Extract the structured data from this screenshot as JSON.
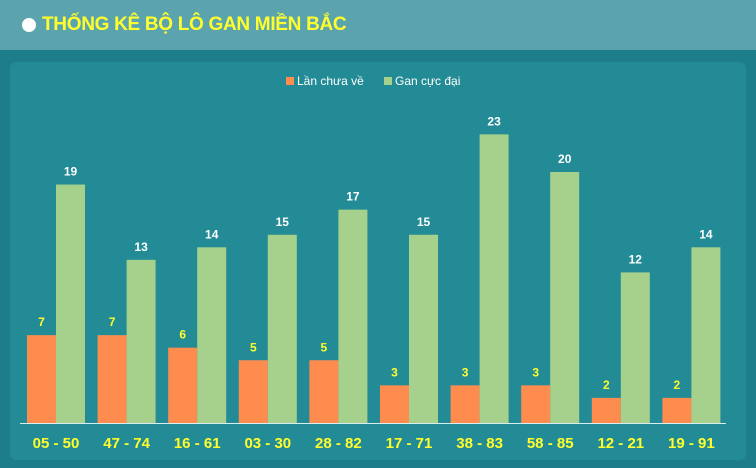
{
  "header": {
    "title": "THỐNG KÊ BỘ LÔ GAN MIỀN BẮC",
    "dot_icon": "circle-icon"
  },
  "colors": {
    "header_bg": "#5ba4ae",
    "page_bg": "#1d7d88",
    "panel_bg": "#228b95",
    "title": "#ffff2e",
    "series_1": "#ff8c4f",
    "series_2": "#a5d18c"
  },
  "chart_data": {
    "type": "bar",
    "legend_position": "top-center",
    "grid": false,
    "ylim": [
      0,
      24
    ],
    "categories": [
      "05 - 50",
      "47 - 74",
      "16 - 61",
      "03 - 30",
      "28 - 82",
      "17 - 71",
      "38 - 83",
      "58 - 85",
      "12 - 21",
      "19 - 91"
    ],
    "series": [
      {
        "name": "Lần chưa về",
        "color": "#ff8c4f",
        "values": [
          7,
          7,
          6,
          5,
          5,
          3,
          3,
          3,
          2,
          2
        ]
      },
      {
        "name": "Gan cực đại",
        "color": "#a5d18c",
        "values": [
          19,
          13,
          14,
          15,
          17,
          15,
          23,
          20,
          12,
          14
        ]
      }
    ]
  }
}
